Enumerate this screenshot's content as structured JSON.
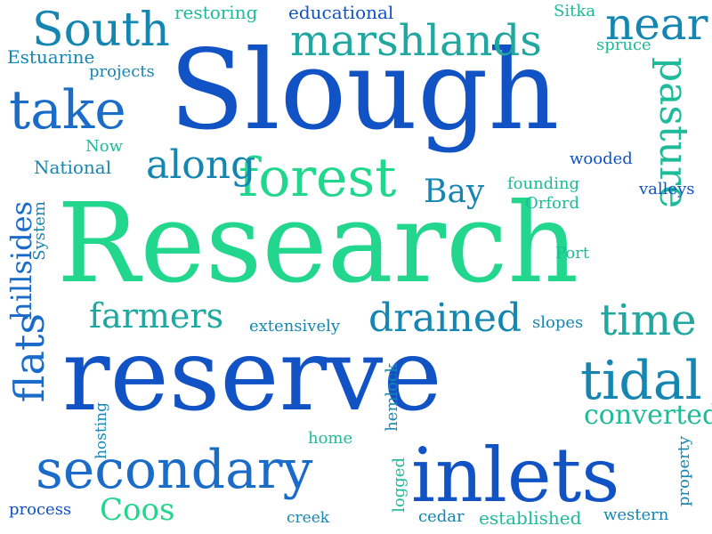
{
  "palette": {
    "blue_dark": "#1152c4",
    "blue": "#1a6cc8",
    "teal_blue": "#1586b2",
    "teal": "#1fa7a0",
    "green_teal": "#1dbb9a",
    "green": "#22d78d",
    "background": "#ffffff"
  },
  "words": [
    {
      "text": "Research"
    },
    {
      "text": "reserve"
    },
    {
      "text": "Slough"
    },
    {
      "text": "inlets"
    },
    {
      "text": "secondary"
    },
    {
      "text": "marshlands"
    },
    {
      "text": "forest"
    },
    {
      "text": "tidal"
    },
    {
      "text": "South"
    },
    {
      "text": "take"
    },
    {
      "text": "near"
    },
    {
      "text": "drained"
    },
    {
      "text": "farmers"
    },
    {
      "text": "time"
    },
    {
      "text": "along"
    },
    {
      "text": "Coos"
    },
    {
      "text": "Bay"
    },
    {
      "text": "converted"
    },
    {
      "text": "flats"
    },
    {
      "text": "pasture"
    },
    {
      "text": "hillsides"
    },
    {
      "text": "restoring"
    },
    {
      "text": "educational"
    },
    {
      "text": "Sitka"
    },
    {
      "text": "spruce"
    },
    {
      "text": "Estuarine"
    },
    {
      "text": "projects"
    },
    {
      "text": "Now"
    },
    {
      "text": "National"
    },
    {
      "text": "System"
    },
    {
      "text": "wooded"
    },
    {
      "text": "founding"
    },
    {
      "text": "Orford"
    },
    {
      "text": "valleys"
    },
    {
      "text": "Port"
    },
    {
      "text": "extensively"
    },
    {
      "text": "slopes"
    },
    {
      "text": "hosting"
    },
    {
      "text": "home"
    },
    {
      "text": "hemlock"
    },
    {
      "text": "logged"
    },
    {
      "text": "property"
    },
    {
      "text": "process"
    },
    {
      "text": "creek"
    },
    {
      "text": "cedar"
    },
    {
      "text": "established"
    },
    {
      "text": "western"
    }
  ]
}
